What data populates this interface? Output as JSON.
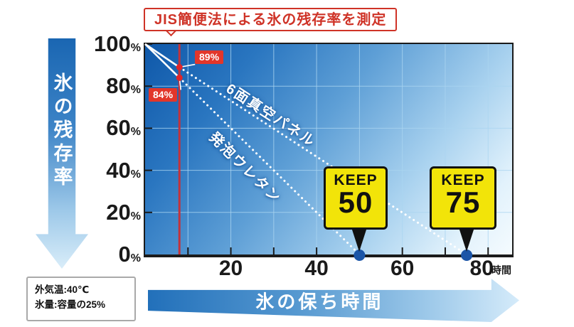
{
  "title_callout": "JIS簡便法による氷の残存率を測定",
  "y_axis_arrow_label": "氷の残存率",
  "x_axis_arrow_label": "氷の保ち時間",
  "x_unit": "時間",
  "y_unit": "%",
  "conditions": {
    "line1": "外気温:40℃",
    "line2": "氷量:容量の25%"
  },
  "badges": {
    "keep50": {
      "word": "KEEP",
      "num": "50"
    },
    "keep75": {
      "word": "KEEP",
      "num": "75"
    }
  },
  "colors": {
    "accent_red": "#cf3327",
    "value_box_red": "#e2362a",
    "measurement_line_red": "#c4323a",
    "dot_red": "#e02529",
    "endpoint_blue": "#1b55a7",
    "badge_yellow": "#f2e409",
    "grid_blue": "#aad4f0",
    "line_white": "#ffffff",
    "axis_black": "#1b1b1b"
  },
  "chart_data": {
    "type": "line",
    "title": "JIS簡便法による氷の残存率を測定",
    "xlabel": "氷の保ち時間 (時間)",
    "ylabel": "氷の残存率 (%)",
    "xlim": [
      0,
      85.6
    ],
    "ylim": [
      0,
      100
    ],
    "x_ticks": [
      20,
      40,
      60,
      80
    ],
    "x_minor_ticks": [
      10,
      30,
      50,
      70
    ],
    "y_ticks": [
      100,
      80,
      60,
      40,
      20,
      0
    ],
    "grid": true,
    "grid_x_step": 10,
    "grid_y_step": 20,
    "legend_position": "on-line labels",
    "measurement_line_x": 8,
    "series": [
      {
        "name": "6面真空パネル",
        "points": [
          [
            0,
            100
          ],
          [
            8,
            89
          ],
          [
            75,
            0
          ]
        ],
        "value_at_measurement": "89%",
        "keep_hours": 75,
        "style": "white dotted"
      },
      {
        "name": "発泡ウレタン",
        "points": [
          [
            0,
            100
          ],
          [
            8,
            84
          ],
          [
            50,
            0
          ]
        ],
        "value_at_measurement": "84%",
        "keep_hours": 50,
        "style": "white dotted"
      }
    ]
  }
}
